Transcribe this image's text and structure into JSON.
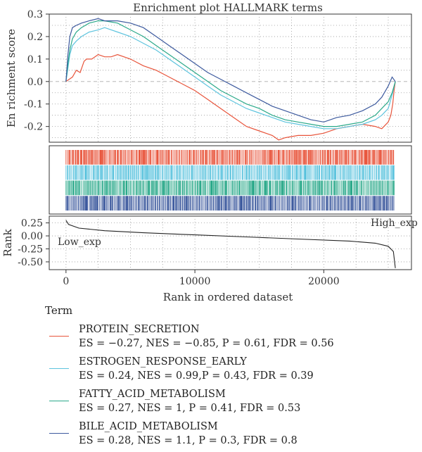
{
  "chart_data": {
    "type": "line",
    "title": "Enrichment plot HALLMARK terms",
    "top_panel": {
      "ylabel": "En richment score",
      "ylim": [
        -0.27,
        0.3
      ],
      "yticks": [
        -0.2,
        -0.1,
        0.0,
        0.1,
        0.2,
        0.3
      ],
      "ytick_labels": [
        "-0.2",
        "-0.1",
        "0.0",
        "0.1",
        "0.2",
        "0.3"
      ],
      "grid": true
    },
    "bottom_panel": {
      "ylabel": "Rank",
      "ylim": [
        -0.65,
        0.38
      ],
      "yticks": [
        -0.5,
        -0.25,
        0.0,
        0.25
      ],
      "ytick_labels": [
        "-0.50",
        "-0.25",
        "0.00",
        "0.25"
      ],
      "annotations": [
        "Low_exp",
        "High_exp"
      ],
      "ranked_metric": {
        "x": [
          0,
          200,
          1000,
          3000,
          6000,
          10000,
          14000,
          18000,
          22000,
          24000,
          25000,
          25400,
          25550
        ],
        "y": [
          0.3,
          0.22,
          0.15,
          0.1,
          0.06,
          0.02,
          -0.02,
          -0.06,
          -0.1,
          -0.14,
          -0.2,
          -0.3,
          -0.62
        ]
      }
    },
    "xlabel": "Rank in ordered dataset",
    "xlim": [
      -1300,
      26800
    ],
    "xticks": [
      0,
      10000,
      20000
    ],
    "xtick_labels": [
      "0",
      "10000",
      "20000"
    ],
    "legend_title": "Term",
    "legend_placement": "bottom",
    "series": [
      {
        "name": "PROTEIN_SECRETION",
        "stats": "ES = −0.27, NES = −0.85, P = 0.61, FDR = 0.56",
        "color": "#E8553C",
        "x": [
          0,
          250,
          500,
          800,
          1100,
          1400,
          1600,
          2000,
          2500,
          3000,
          3500,
          4000,
          5000,
          6000,
          7000,
          8000,
          9000,
          10000,
          11000,
          12000,
          13000,
          14000,
          15000,
          16000,
          16500,
          17000,
          18000,
          19000,
          20000,
          21000,
          22000,
          23000,
          24000,
          24500,
          25000,
          25200,
          25350,
          25450,
          25550
        ],
        "y": [
          0.0,
          0.01,
          0.02,
          0.05,
          0.04,
          0.09,
          0.1,
          0.1,
          0.12,
          0.11,
          0.11,
          0.12,
          0.1,
          0.07,
          0.05,
          0.02,
          -0.01,
          -0.04,
          -0.08,
          -0.12,
          -0.16,
          -0.2,
          -0.22,
          -0.24,
          -0.26,
          -0.25,
          -0.24,
          -0.24,
          -0.23,
          -0.21,
          -0.2,
          -0.19,
          -0.2,
          -0.21,
          -0.18,
          -0.15,
          -0.1,
          -0.04,
          0.0
        ]
      },
      {
        "name": "ESTROGEN_RESPONSE_EARLY",
        "stats": "ES = 0.24, NES = 0.99,P = 0.43, FDR = 0.39",
        "color": "#5EC4DE",
        "x": [
          0,
          150,
          300,
          500,
          800,
          1200,
          1800,
          2500,
          3000,
          4000,
          5000,
          6000,
          7000,
          8000,
          9000,
          10000,
          11000,
          12000,
          13000,
          14000,
          15000,
          16000,
          17000,
          18000,
          19000,
          20000,
          21000,
          22000,
          23000,
          24000,
          24500,
          25000,
          25300,
          25550
        ],
        "y": [
          0.0,
          0.06,
          0.12,
          0.16,
          0.18,
          0.2,
          0.22,
          0.23,
          0.24,
          0.22,
          0.2,
          0.17,
          0.14,
          0.1,
          0.06,
          0.02,
          -0.02,
          -0.06,
          -0.09,
          -0.12,
          -0.14,
          -0.16,
          -0.18,
          -0.19,
          -0.2,
          -0.21,
          -0.21,
          -0.2,
          -0.19,
          -0.17,
          -0.15,
          -0.12,
          -0.06,
          0.0
        ]
      },
      {
        "name": "FATTY_ACID_METABOLISM",
        "stats": "ES = 0.27, NES = 1, P = 0.41, FDR = 0.53",
        "color": "#2BA98A",
        "x": [
          0,
          150,
          300,
          500,
          800,
          1200,
          1800,
          2500,
          3000,
          4000,
          5000,
          6000,
          7000,
          8000,
          9000,
          10000,
          11000,
          12000,
          13000,
          14000,
          15000,
          16000,
          17000,
          18000,
          19000,
          20000,
          21000,
          22000,
          23000,
          24000,
          24500,
          25000,
          25300,
          25550
        ],
        "y": [
          0.0,
          0.08,
          0.14,
          0.19,
          0.22,
          0.24,
          0.26,
          0.27,
          0.27,
          0.26,
          0.23,
          0.2,
          0.16,
          0.12,
          0.08,
          0.04,
          0.0,
          -0.04,
          -0.07,
          -0.1,
          -0.12,
          -0.15,
          -0.17,
          -0.18,
          -0.19,
          -0.2,
          -0.2,
          -0.19,
          -0.18,
          -0.15,
          -0.12,
          -0.09,
          -0.05,
          0.0
        ]
      },
      {
        "name": "BILE_ACID_METABOLISM",
        "stats": "ES = 0.28, NES = 1.1, P = 0.3, FDR = 0.8",
        "color": "#3D5A9E",
        "x": [
          0,
          150,
          300,
          500,
          800,
          1200,
          1800,
          2500,
          3000,
          4000,
          5000,
          6000,
          7000,
          8000,
          9000,
          10000,
          11000,
          12000,
          13000,
          14000,
          15000,
          16000,
          17000,
          18000,
          19000,
          20000,
          21000,
          22000,
          23000,
          24000,
          24500,
          25000,
          25300,
          25550
        ],
        "y": [
          0.0,
          0.12,
          0.2,
          0.24,
          0.25,
          0.26,
          0.27,
          0.28,
          0.27,
          0.27,
          0.26,
          0.24,
          0.2,
          0.16,
          0.12,
          0.08,
          0.04,
          0.01,
          -0.02,
          -0.05,
          -0.08,
          -0.11,
          -0.13,
          -0.15,
          -0.17,
          -0.18,
          -0.16,
          -0.15,
          -0.13,
          -0.1,
          -0.07,
          -0.02,
          0.02,
          0.0
        ]
      }
    ]
  }
}
